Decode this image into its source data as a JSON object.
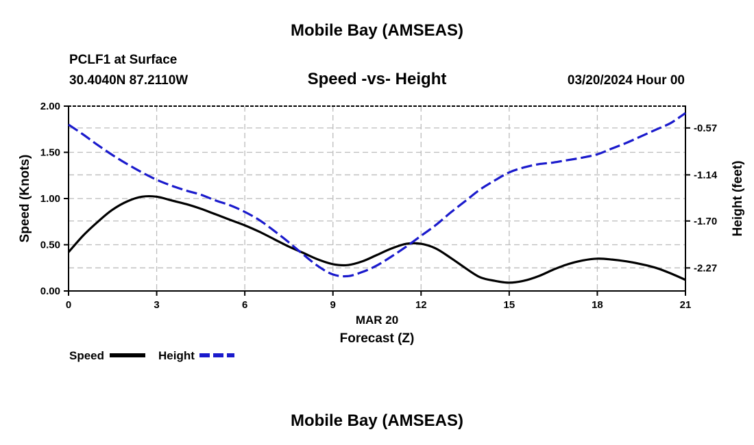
{
  "header": {
    "title": "Mobile Bay (AMSEAS)",
    "station": "PCLF1 at Surface",
    "coords": "30.4040N  87.2110W",
    "chart_title": "Speed -vs- Height",
    "datetime": "03/20/2024 Hour 00"
  },
  "footer": {
    "title": "Mobile Bay (AMSEAS)"
  },
  "legend": [
    {
      "label": "Speed",
      "color": "#000000",
      "style": "solid"
    },
    {
      "label": "Height",
      "color": "#1a1acc",
      "style": "dashed"
    }
  ],
  "chart_data": {
    "type": "line",
    "title": "Speed -vs- Height",
    "xlabel": "Forecast (Z)",
    "xlabel_date": "MAR 20",
    "ylabel_left": "Speed (Knots)",
    "ylabel_right": "Height (feet)",
    "xlim": [
      0,
      21
    ],
    "ylim_left": [
      0,
      2.0
    ],
    "ylim_right": [
      -2.55,
      -0.305
    ],
    "x_ticks": [
      "0",
      "3",
      "6",
      "9",
      "12",
      "15",
      "18",
      "21"
    ],
    "y_left_ticks": [
      "0.00",
      "0.50",
      "1.00",
      "1.50",
      "2.00"
    ],
    "y_right_ticks": [
      "-0.57",
      "-1.14",
      "-1.70",
      "-2.27"
    ],
    "grid": true,
    "legend_position": "bottom-left",
    "series": [
      {
        "name": "Speed",
        "axis": "left",
        "color": "#000000",
        "x": [
          0,
          0.5,
          1,
          1.5,
          2,
          2.5,
          3,
          3.5,
          4,
          4.5,
          5,
          5.5,
          6,
          6.5,
          7,
          7.5,
          8,
          8.5,
          9,
          9.5,
          10,
          10.5,
          11,
          11.5,
          12,
          12.5,
          13,
          13.5,
          14,
          14.5,
          15,
          15.5,
          16,
          16.5,
          17,
          17.5,
          18,
          18.5,
          19,
          19.5,
          20,
          20.5,
          21
        ],
        "values": [
          0.42,
          0.6,
          0.75,
          0.88,
          0.97,
          1.02,
          1.02,
          0.98,
          0.94,
          0.89,
          0.83,
          0.77,
          0.71,
          0.64,
          0.56,
          0.48,
          0.41,
          0.34,
          0.29,
          0.28,
          0.32,
          0.39,
          0.46,
          0.51,
          0.51,
          0.46,
          0.36,
          0.25,
          0.15,
          0.11,
          0.09,
          0.11,
          0.16,
          0.23,
          0.29,
          0.33,
          0.35,
          0.34,
          0.32,
          0.29,
          0.25,
          0.19,
          0.12
        ]
      },
      {
        "name": "Height",
        "axis": "right",
        "color": "#1a1acc",
        "x": [
          0,
          0.5,
          1,
          1.5,
          2,
          2.5,
          3,
          3.5,
          4,
          4.5,
          5,
          5.5,
          6,
          6.5,
          7,
          7.5,
          8,
          8.5,
          9,
          9.5,
          10,
          10.5,
          11,
          11.5,
          12,
          12.5,
          13,
          13.5,
          14,
          14.5,
          15,
          15.5,
          16,
          16.5,
          17,
          17.5,
          18,
          18.5,
          19,
          19.5,
          20,
          20.5,
          21
        ],
        "values": [
          -0.53,
          -0.65,
          -0.78,
          -0.9,
          -1.01,
          -1.11,
          -1.2,
          -1.27,
          -1.33,
          -1.38,
          -1.45,
          -1.51,
          -1.59,
          -1.69,
          -1.82,
          -1.96,
          -2.11,
          -2.25,
          -2.35,
          -2.37,
          -2.32,
          -2.24,
          -2.13,
          -2.01,
          -1.88,
          -1.75,
          -1.6,
          -1.46,
          -1.32,
          -1.21,
          -1.11,
          -1.05,
          -1.01,
          -0.99,
          -0.96,
          -0.93,
          -0.89,
          -0.82,
          -0.75,
          -0.67,
          -0.59,
          -0.51,
          -0.39
        ]
      }
    ]
  }
}
